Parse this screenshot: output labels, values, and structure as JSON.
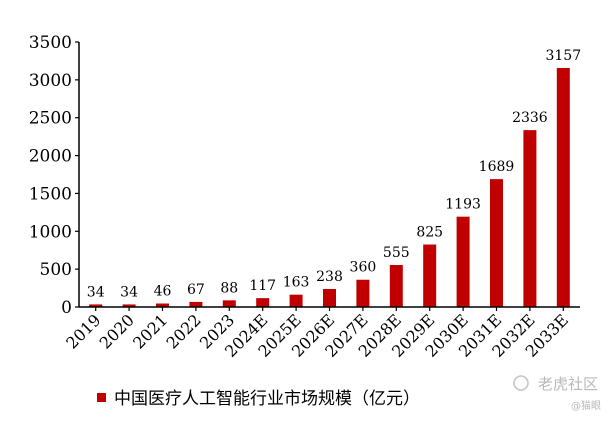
{
  "chart_data": {
    "type": "bar",
    "categories": [
      "2019",
      "2020",
      "2021",
      "2022",
      "2023",
      "2024E",
      "2025E",
      "2026E",
      "2027E",
      "2028E",
      "2029E",
      "2030E",
      "2031E",
      "2032E",
      "2033E"
    ],
    "values": [
      34,
      34,
      46,
      67,
      88,
      117,
      163,
      238,
      360,
      555,
      825,
      1193,
      1689,
      2336,
      3157
    ],
    "series": [
      {
        "name": "中国医疗人工智能行业市场规模（亿元）",
        "color": "#c00000"
      }
    ],
    "ylim": [
      0,
      3500
    ],
    "yticks": [
      0,
      500,
      1000,
      1500,
      2000,
      2500,
      3000,
      3500
    ],
    "grid": false,
    "legend_position": "bottom"
  },
  "watermark": {
    "brand": "老虎社区",
    "handle": "@猫眼"
  }
}
